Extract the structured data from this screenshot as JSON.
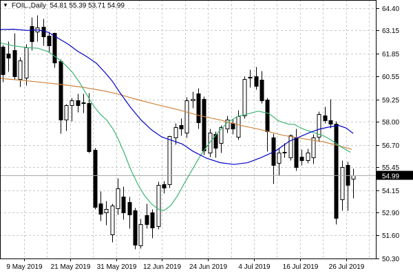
{
  "header": {
    "dropdown_icon": "▼",
    "symbol_period": "FOIL.,Daily",
    "ohlc": {
      "open": "54.81",
      "high": "55.39",
      "low": "53.71",
      "close": "54.99"
    }
  },
  "price_axis": {
    "side": "right",
    "ticks": [
      {
        "label": "64.40",
        "value": 64.4
      },
      {
        "label": "63.15",
        "value": 63.15
      },
      {
        "label": "61.85",
        "value": 61.85
      },
      {
        "label": "60.55",
        "value": 60.55
      },
      {
        "label": "59.25",
        "value": 59.25
      },
      {
        "label": "58.00",
        "value": 58.0
      },
      {
        "label": "56.70",
        "value": 56.7
      },
      {
        "label": "55.45",
        "value": 55.45
      },
      {
        "label": "54.15",
        "value": 54.15
      },
      {
        "label": "52.90",
        "value": 52.9
      },
      {
        "label": "51.60",
        "value": 51.6
      },
      {
        "label": "50.30",
        "value": 50.3
      }
    ],
    "current": {
      "label": "54.99",
      "value": 54.99,
      "bg": "#000000",
      "fg": "#ffffff"
    }
  },
  "time_axis": {
    "labels": [
      "9 May 2019",
      "21 May 2019",
      "31 May 2019",
      "12 Jun 2019",
      "24 Jun 2019",
      "4 Jul 2019",
      "16 Jul 2019",
      "26 Jul 2019"
    ]
  },
  "colors": {
    "background": "#ffffff",
    "grid": "#c8c8c8",
    "frame": "#000000",
    "text": "#000000",
    "bull_body": "#ffffff",
    "bear_body": "#000000",
    "candle_outline": "#000000",
    "ma_fast": "#0000c8",
    "ma_mid": "#3cb371",
    "ma_slow": "#cd853f",
    "current_price_line": "#a8a8a8"
  },
  "chart_data": {
    "type": "candlestick",
    "title": "FOIL.,Daily",
    "last_ohlc": {
      "open": 54.81,
      "high": 55.39,
      "low": 53.71,
      "close": 54.99
    },
    "price_range": [
      50.3,
      64.4
    ],
    "grid": true,
    "legend_position": "none",
    "x_tick_labels": [
      "9 May 2019",
      "21 May 2019",
      "31 May 2019",
      "12 Jun 2019",
      "24 Jun 2019",
      "4 Jul 2019",
      "16 Jul 2019",
      "26 Jul 2019"
    ],
    "candles_ohlc": [
      [
        62.23,
        62.35,
        60.27,
        60.68
      ],
      [
        61.85,
        62.55,
        60.85,
        61.6
      ],
      [
        62.03,
        63.0,
        60.4,
        60.55
      ],
      [
        60.4,
        61.65,
        60.0,
        61.45
      ],
      [
        60.5,
        62.4,
        60.07,
        62.21
      ],
      [
        63.39,
        63.9,
        62.03,
        62.55
      ],
      [
        63.07,
        64.0,
        62.55,
        63.33
      ],
      [
        63.35,
        63.8,
        62.3,
        62.8
      ],
      [
        62.85,
        63.1,
        61.95,
        62.3
      ],
      [
        63.0,
        63.05,
        61.05,
        61.35
      ],
      [
        61.42,
        61.55,
        57.35,
        58.13
      ],
      [
        58.13,
        59.0,
        57.5,
        58.94
      ],
      [
        58.95,
        59.35,
        58.03,
        59.2
      ],
      [
        59.2,
        59.58,
        58.56,
        58.95
      ],
      [
        59.05,
        59.6,
        58.5,
        59.08
      ],
      [
        59.06,
        59.64,
        56.25,
        56.35
      ],
      [
        56.43,
        56.55,
        53.08,
        53.21
      ],
      [
        53.4,
        54.1,
        52.44,
        52.82
      ],
      [
        52.89,
        53.54,
        52.2,
        53.08
      ],
      [
        51.66,
        53.4,
        51.23,
        53.28
      ],
      [
        53.14,
        54.84,
        52.76,
        54.26
      ],
      [
        53.79,
        54.37,
        52.5,
        52.89
      ],
      [
        53.47,
        53.79,
        51.99,
        52.77
      ],
      [
        53.02,
        53.15,
        50.84,
        51.09
      ],
      [
        51.03,
        52.56,
        50.9,
        52.25
      ],
      [
        52.75,
        53.4,
        51.99,
        52.25
      ],
      [
        52.89,
        53.08,
        51.47,
        52.05
      ],
      [
        52.12,
        54.63,
        51.95,
        54.43
      ],
      [
        54.5,
        54.69,
        53.97,
        54.3
      ],
      [
        54.5,
        57.25,
        54.28,
        57.18
      ],
      [
        57.12,
        57.95,
        56.73,
        57.7
      ],
      [
        57.83,
        58.2,
        57.25,
        57.64
      ],
      [
        57.38,
        59.39,
        57.12,
        59.19
      ],
      [
        59.2,
        59.7,
        58.8,
        59.3
      ],
      [
        59.58,
        59.9,
        57.64,
        57.97
      ],
      [
        59.27,
        59.45,
        56.16,
        56.4
      ],
      [
        56.28,
        57.64,
        56.05,
        57.4
      ],
      [
        57.3,
        57.45,
        56.0,
        56.52
      ],
      [
        56.82,
        57.83,
        56.28,
        57.7
      ],
      [
        57.64,
        58.36,
        57.38,
        58.14
      ],
      [
        57.95,
        58.17,
        57.3,
        57.64
      ],
      [
        57.14,
        58.65,
        57.0,
        58.3
      ],
      [
        58.36,
        60.55,
        58.2,
        60.42
      ],
      [
        60.5,
        60.94,
        59.96,
        60.52
      ],
      [
        60.56,
        61.1,
        59.84,
        60.04
      ],
      [
        60.36,
        60.88,
        59.06,
        59.19
      ],
      [
        59.25,
        59.35,
        56.35,
        57.45
      ],
      [
        57.12,
        57.35,
        54.53,
        55.58
      ],
      [
        55.7,
        56.5,
        55.0,
        56.28
      ],
      [
        56.28,
        56.8,
        56.0,
        56.3
      ],
      [
        56.0,
        57.3,
        55.85,
        57.25
      ],
      [
        57.12,
        57.64,
        55.27,
        55.46
      ],
      [
        56.05,
        56.45,
        55.55,
        55.85
      ],
      [
        55.85,
        56.5,
        55.68,
        56.25
      ],
      [
        55.98,
        57.3,
        55.66,
        57.12
      ],
      [
        57.15,
        58.6,
        56.9,
        58.42
      ],
      [
        58.36,
        58.87,
        57.95,
        58.1
      ],
      [
        58.1,
        59.27,
        57.65,
        57.9
      ],
      [
        57.9,
        58.05,
        52.25,
        52.6
      ],
      [
        53.63,
        55.83,
        53.0,
        55.44
      ],
      [
        55.57,
        55.76,
        53.0,
        54.43
      ],
      [
        54.81,
        55.39,
        53.71,
        54.99
      ]
    ],
    "moving_averages": [
      {
        "name": "ma-slow-orange",
        "points": [
          [
            0,
            60.45
          ],
          [
            30,
            60.35
          ],
          [
            60,
            60.23
          ],
          [
            90,
            60.1
          ],
          [
            120,
            59.95
          ],
          [
            150,
            59.75
          ],
          [
            170,
            59.58
          ],
          [
            200,
            59.25
          ],
          [
            230,
            58.95
          ],
          [
            260,
            58.67
          ],
          [
            290,
            58.35
          ],
          [
            320,
            58.1
          ],
          [
            350,
            57.8
          ],
          [
            380,
            57.55
          ],
          [
            410,
            57.25
          ],
          [
            440,
            57.05
          ],
          [
            470,
            56.87
          ],
          [
            490,
            56.68
          ],
          [
            511,
            56.45
          ]
        ]
      },
      {
        "name": "ma-mid-green",
        "points": [
          [
            0,
            62.45
          ],
          [
            20,
            62.28
          ],
          [
            40,
            62.18
          ],
          [
            55,
            62.15
          ],
          [
            70,
            61.95
          ],
          [
            85,
            61.55
          ],
          [
            95,
            61.2
          ],
          [
            105,
            60.8
          ],
          [
            115,
            60.25
          ],
          [
            125,
            59.6
          ],
          [
            135,
            58.95
          ],
          [
            145,
            58.45
          ],
          [
            155,
            58.1
          ],
          [
            165,
            57.55
          ],
          [
            172,
            57.0
          ],
          [
            180,
            56.3
          ],
          [
            190,
            55.3
          ],
          [
            200,
            54.5
          ],
          [
            210,
            53.85
          ],
          [
            220,
            53.38
          ],
          [
            230,
            53.08
          ],
          [
            238,
            53.0
          ],
          [
            248,
            53.28
          ],
          [
            258,
            53.85
          ],
          [
            268,
            54.55
          ],
          [
            280,
            55.35
          ],
          [
            292,
            56.15
          ],
          [
            305,
            56.85
          ],
          [
            318,
            57.45
          ],
          [
            330,
            57.95
          ],
          [
            345,
            58.3
          ],
          [
            360,
            58.45
          ],
          [
            375,
            58.6
          ],
          [
            390,
            58.48
          ],
          [
            405,
            58.05
          ],
          [
            418,
            57.88
          ],
          [
            428,
            57.85
          ],
          [
            440,
            57.6
          ],
          [
            455,
            57.4
          ],
          [
            470,
            57.22
          ],
          [
            480,
            57.0
          ],
          [
            495,
            56.6
          ],
          [
            509,
            56.28
          ]
        ]
      },
      {
        "name": "ma-fast-blue",
        "points": [
          [
            0,
            63.2
          ],
          [
            20,
            63.22
          ],
          [
            40,
            63.15
          ],
          [
            55,
            63.18
          ],
          [
            70,
            63.05
          ],
          [
            85,
            62.7
          ],
          [
            100,
            62.35
          ],
          [
            112,
            62.0
          ],
          [
            125,
            61.7
          ],
          [
            140,
            61.3
          ],
          [
            152,
            60.8
          ],
          [
            163,
            60.3
          ],
          [
            175,
            59.6
          ],
          [
            190,
            58.8
          ],
          [
            205,
            58.1
          ],
          [
            220,
            57.55
          ],
          [
            235,
            57.15
          ],
          [
            250,
            56.95
          ],
          [
            265,
            56.75
          ],
          [
            280,
            56.35
          ],
          [
            300,
            55.95
          ],
          [
            320,
            55.7
          ],
          [
            340,
            55.6
          ],
          [
            360,
            55.7
          ],
          [
            380,
            56.0
          ],
          [
            400,
            56.35
          ],
          [
            420,
            56.9
          ],
          [
            435,
            57.15
          ],
          [
            450,
            57.4
          ],
          [
            465,
            57.6
          ],
          [
            480,
            57.72
          ],
          [
            492,
            57.8
          ],
          [
            503,
            57.65
          ],
          [
            513,
            57.35
          ]
        ]
      }
    ],
    "current_price": 54.99
  }
}
